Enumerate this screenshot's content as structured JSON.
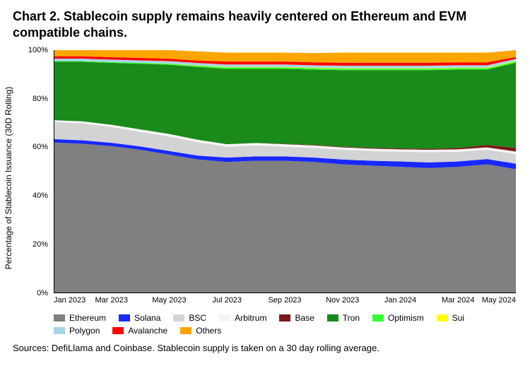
{
  "title": "Chart 2. Stablecoin supply remains heavily centered on Ethereum and EVM compatible chains.",
  "y_axis_label": "Percentage of Stablecoin Issuance (30D Rolling)",
  "source_text": "Sources: DefiLlama and Coinbase. Stablecoin supply is taken on a 30 day rolling average.",
  "chart": {
    "type": "stacked-area",
    "background_color": "#ffffff",
    "axis_color": "#000000",
    "tick_font_size": 11,
    "label_font_size": 12,
    "ylim": [
      0,
      100
    ],
    "ytick_values": [
      0,
      20,
      40,
      60,
      80,
      100
    ],
    "ytick_labels": [
      "0%",
      "20%",
      "40%",
      "60%",
      "80%",
      "100%"
    ],
    "x_categories": [
      "Jan 2023",
      "Mar 2023",
      "May 2023",
      "Jul 2023",
      "Sep 2023",
      "Nov 2023",
      "Jan 2024",
      "Mar 2024",
      "May 2024"
    ],
    "x_positions": [
      0,
      2,
      4,
      6,
      8,
      10,
      12,
      14,
      16
    ],
    "n_points": 17,
    "series": [
      {
        "name": "Ethereum",
        "color": "#808080",
        "values": [
          62,
          61.5,
          60.5,
          59,
          57,
          55,
          54,
          54.5,
          54.5,
          54,
          53,
          52.5,
          52,
          51.5,
          52,
          53,
          51
        ]
      },
      {
        "name": "Solana",
        "color": "#1828ff",
        "values": [
          1.4,
          1.4,
          1.4,
          1.4,
          1.5,
          1.6,
          1.8,
          1.8,
          1.8,
          1.8,
          2,
          2,
          2.2,
          2.3,
          2.2,
          2.2,
          2.3
        ]
      },
      {
        "name": "BSC",
        "color": "#d3d3d3",
        "values": [
          7,
          7,
          6.5,
          6,
          6,
          5.5,
          4.5,
          4.5,
          4,
          4,
          4,
          4,
          4,
          4.2,
          4,
          3.8,
          4
        ]
      },
      {
        "name": "Arbitrum",
        "color": "#f5f5f5",
        "values": [
          0.8,
          0.8,
          0.9,
          1,
          1,
          1,
          1,
          1,
          1,
          1,
          1,
          1,
          1,
          1,
          1,
          1,
          1
        ]
      },
      {
        "name": "Base",
        "color": "#7a1a1a",
        "values": [
          0,
          0,
          0,
          0,
          0,
          0,
          0,
          0,
          0.2,
          0.2,
          0.3,
          0.3,
          0.4,
          0.4,
          0.6,
          1,
          1.5
        ]
      },
      {
        "name": "Tron",
        "color": "#1a8a1a",
        "values": [
          24,
          24.5,
          25.5,
          27,
          28.5,
          30,
          31,
          30.5,
          30.8,
          31,
          31.5,
          32,
          32.2,
          32.4,
          32.2,
          31,
          35
        ]
      },
      {
        "name": "Optimism",
        "color": "#33ff33",
        "values": [
          0.3,
          0.3,
          0.3,
          0.4,
          0.4,
          0.5,
          0.6,
          0.6,
          0.6,
          0.6,
          0.6,
          0.6,
          0.6,
          0.6,
          0.6,
          0.6,
          0.6
        ]
      },
      {
        "name": "Sui",
        "color": "#ffff00",
        "values": [
          0,
          0,
          0,
          0,
          0.1,
          0.1,
          0.2,
          0.2,
          0.2,
          0.2,
          0.2,
          0.2,
          0.2,
          0.2,
          0.2,
          0.2,
          0.2
        ]
      },
      {
        "name": "Polygon",
        "color": "#a8d4e8",
        "values": [
          1,
          1,
          1,
          1,
          1,
          1,
          1,
          1,
          1,
          1,
          1,
          1,
          1,
          1,
          1,
          1,
          0.8
        ]
      },
      {
        "name": "Avalanche",
        "color": "#ff0000",
        "values": [
          1,
          1,
          1,
          1,
          1,
          1,
          1.2,
          1.2,
          1.2,
          1.2,
          1.2,
          1.2,
          1.2,
          1.2,
          1.2,
          1.2,
          0.8
        ]
      },
      {
        "name": "Others",
        "color": "#ffa500",
        "values": [
          2.5,
          2.5,
          2.9,
          3.2,
          3.5,
          3.8,
          3.7,
          3.7,
          3.7,
          3.8,
          4.2,
          4.2,
          4.2,
          4.2,
          4,
          4,
          2.8
        ]
      }
    ],
    "legend_order": [
      "Ethereum",
      "Solana",
      "BSC",
      "Arbitrum",
      "Base",
      "Tron",
      "Optimism",
      "Sui",
      "Polygon",
      "Avalanche",
      "Others"
    ]
  }
}
